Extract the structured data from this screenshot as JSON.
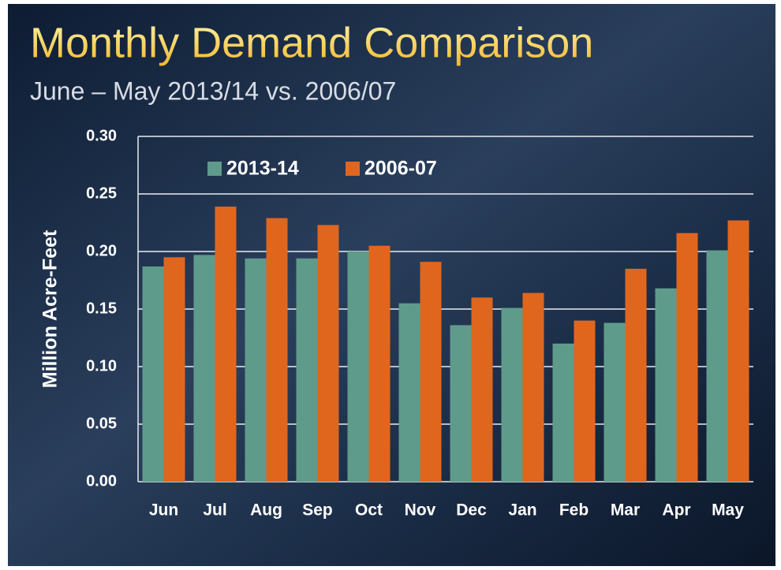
{
  "chart_data": {
    "type": "bar",
    "title": "Monthly Demand Comparison",
    "subtitle": "June – May 2013/14 vs. 2006/07",
    "y_label": "Million Acre-Feet",
    "categories": [
      "Jun",
      "Jul",
      "Aug",
      "Sep",
      "Oct",
      "Nov",
      "Dec",
      "Jan",
      "Feb",
      "Mar",
      "Apr",
      "May"
    ],
    "series": [
      {
        "name": "2013-14",
        "color": "#5f9b8a",
        "values": [
          0.187,
          0.197,
          0.194,
          0.194,
          0.2,
          0.155,
          0.136,
          0.151,
          0.12,
          0.138,
          0.168,
          0.201
        ]
      },
      {
        "name": "2006-07",
        "color": "#e0661e",
        "values": [
          0.195,
          0.239,
          0.229,
          0.223,
          0.205,
          0.191,
          0.16,
          0.164,
          0.14,
          0.185,
          0.216,
          0.227
        ]
      }
    ],
    "ylim": [
      0,
      0.3
    ],
    "yticks": [
      {
        "value": 0,
        "label": "0.00"
      },
      0.05,
      {
        "value": 0.1,
        "label": "0.10"
      },
      0.15,
      {
        "value": 0.2,
        "label": "0.20"
      },
      0.25,
      {
        "value": 0.3,
        "label": "0.30"
      }
    ],
    "grid": true,
    "legend": "top"
  }
}
